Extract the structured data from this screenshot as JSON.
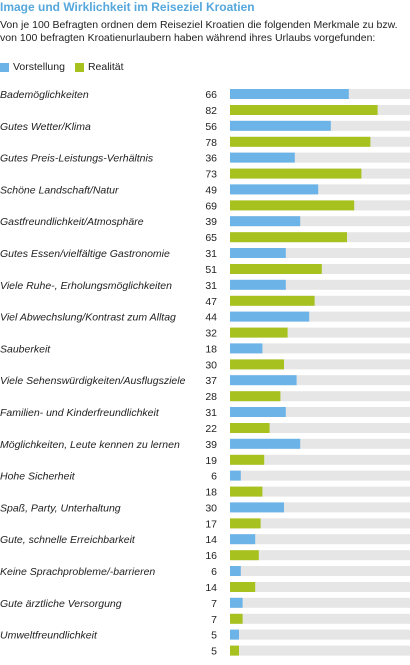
{
  "title": "Image und Wirklichkeit im Reiseziel Kroatien",
  "subtitle": "Von je 100 Befragten ordnen dem Reiseziel Kroatien die folgenden Merkmale zu bzw. von 100 befragten Kroatienurlaubern haben während ihres Urlaubs vorgefunden:",
  "legend": [
    {
      "name": "Vorstellung",
      "color": "#6cb4e8"
    },
    {
      "name": "Realität",
      "color": "#a7c21f"
    }
  ],
  "colors": {
    "track": "#e6e6e6",
    "title": "#55a7dc"
  },
  "chart_data": {
    "type": "bar",
    "orientation": "horizontal",
    "xlim": [
      0,
      100
    ],
    "categories": [
      "Bademöglichkeiten",
      "Gutes Wetter/Klima",
      "Gutes Preis-Leistungs-Verhältnis",
      "Schöne Landschaft/Natur",
      "Gastfreundlichkeit/Atmosphäre",
      "Gutes Essen/vielfältige Gastronomie",
      "Viele Ruhe-, Erholungsmöglichkeiten",
      "Viel Abwechslung/Kontrast zum Alltag",
      "Sauberkeit",
      "Viele Sehenswürdigkeiten/Ausflugsziele",
      "Familien- und Kinderfreundlichkeit",
      "Möglichkeiten, Leute kennen zu lernen",
      "Hohe Sicherheit",
      "Spaß, Party, Unterhaltung",
      "Gute, schnelle Erreichbarkeit",
      "Keine Sprachprobleme/-barrieren",
      "Gute ärztliche Versorgung",
      "Umweltfreundlichkeit"
    ],
    "series": [
      {
        "name": "Vorstellung",
        "values": [
          66,
          56,
          36,
          49,
          39,
          31,
          31,
          44,
          18,
          37,
          31,
          39,
          6,
          30,
          14,
          6,
          7,
          5
        ]
      },
      {
        "name": "Realität",
        "values": [
          82,
          78,
          73,
          69,
          65,
          51,
          47,
          32,
          30,
          28,
          22,
          19,
          18,
          17,
          16,
          14,
          7,
          5
        ]
      }
    ]
  }
}
